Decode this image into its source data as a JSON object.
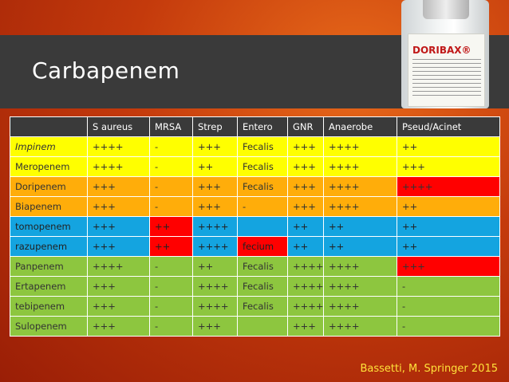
{
  "slide": {
    "title": "Carbapenem",
    "credit": "Bassetti, M. Springer 2015",
    "vial_brand": "DORIBAX®"
  },
  "colors": {
    "yellow": "#ffff00",
    "orange": "#ffad0a",
    "blue": "#14a4e0",
    "green": "#8dc63f",
    "red": "#ff0000",
    "header": "#3a3a3a"
  },
  "table": {
    "headers": [
      "",
      "S aureus",
      "MRSA",
      "Strep",
      "Entero",
      "GNR",
      "Anaerobe",
      "Pseud/Acinet"
    ],
    "rows": [
      {
        "color": "yellow",
        "italic_first": true,
        "red_cols": [],
        "cells": [
          "Impinem",
          "++++",
          "-",
          "+++",
          "Fecalis",
          "+++",
          "++++",
          "++"
        ]
      },
      {
        "color": "yellow",
        "italic_first": false,
        "red_cols": [],
        "cells": [
          "Meropenem",
          "++++",
          "-",
          "++",
          "Fecalis",
          "+++",
          "++++",
          "+++"
        ]
      },
      {
        "color": "orange",
        "italic_first": false,
        "red_cols": [
          7
        ],
        "cells": [
          "Doripenem",
          "+++",
          "-",
          "+++",
          "Fecalis",
          "+++",
          "++++",
          "++++"
        ]
      },
      {
        "color": "orange",
        "italic_first": false,
        "red_cols": [],
        "cells": [
          "Biapenem",
          "+++",
          "-",
          "+++",
          "-",
          "+++",
          "++++",
          "++"
        ]
      },
      {
        "color": "blue",
        "italic_first": false,
        "red_cols": [
          2
        ],
        "cells": [
          "tomopenem",
          "+++",
          "++",
          "++++",
          "",
          "++",
          "++",
          "++"
        ]
      },
      {
        "color": "blue",
        "italic_first": false,
        "red_cols": [
          2,
          4
        ],
        "cells": [
          "razupenem",
          "+++",
          "++",
          "++++",
          "fecium",
          "++",
          "++",
          "++"
        ]
      },
      {
        "color": "green",
        "italic_first": false,
        "red_cols": [
          7
        ],
        "cells": [
          "Panpenem",
          "++++",
          "-",
          "++",
          "Fecalis",
          "++++",
          "++++",
          "+++"
        ]
      },
      {
        "color": "green",
        "italic_first": false,
        "red_cols": [],
        "cells": [
          "Ertapenem",
          "+++",
          "-",
          "++++",
          "Fecalis",
          "++++",
          "++++",
          "-"
        ]
      },
      {
        "color": "green",
        "italic_first": false,
        "red_cols": [],
        "cells": [
          "tebipenem",
          "+++",
          "-",
          "++++",
          "Fecalis",
          "++++",
          "++++",
          "-"
        ]
      },
      {
        "color": "green",
        "italic_first": false,
        "red_cols": [],
        "cells": [
          "Sulopenem",
          "+++",
          "-",
          "+++",
          "",
          "+++",
          "++++",
          "-"
        ]
      }
    ]
  }
}
